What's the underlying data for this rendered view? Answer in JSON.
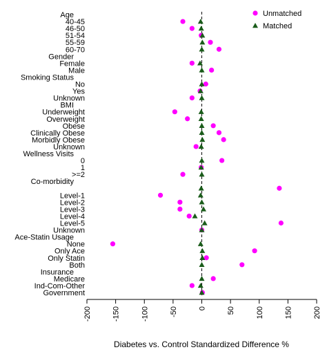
{
  "chart_data": {
    "type": "scatter",
    "xlabel": "Diabetes vs. Control Standardized Difference %",
    "xlim": [
      -200,
      200
    ],
    "xticks": [
      -200,
      -150,
      -100,
      -50,
      0,
      50,
      100,
      150,
      200
    ],
    "reference_line": 0,
    "legend_position": "top-right",
    "colors": {
      "unmatched": "#ff00ff",
      "matched": "#1a5c1a"
    },
    "legend": [
      {
        "key": "unmatched",
        "label": "Unmatched",
        "marker": "circle"
      },
      {
        "key": "matched",
        "label": "Matched",
        "marker": "triangle"
      }
    ],
    "rows": [
      {
        "label": "Age",
        "header": true
      },
      {
        "label": "40-45",
        "unmatched": -33,
        "matched": -2
      },
      {
        "label": "46-50",
        "unmatched": -17,
        "matched": -1
      },
      {
        "label": "51-54",
        "unmatched": -1,
        "matched": 1
      },
      {
        "label": "55-59",
        "unmatched": 15,
        "matched": 1
      },
      {
        "label": "60-70",
        "unmatched": 30,
        "matched": 0
      },
      {
        "label": "Gender",
        "header": true
      },
      {
        "label": "Female",
        "unmatched": -17,
        "matched": -3
      },
      {
        "label": "Male",
        "unmatched": 17,
        "matched": 0
      },
      {
        "label": "Smoking Status",
        "header": true
      },
      {
        "label": "No",
        "unmatched": 7,
        "matched": 0
      },
      {
        "label": "Yes",
        "unmatched": -3,
        "matched": -2
      },
      {
        "label": "Unknown",
        "unmatched": -17,
        "matched": 0
      },
      {
        "label": "BMI",
        "header": true
      },
      {
        "label": "Underweight",
        "unmatched": -47,
        "matched": -1
      },
      {
        "label": "Overweight",
        "unmatched": -25,
        "matched": -1
      },
      {
        "label": "Obese",
        "unmatched": 20,
        "matched": 0
      },
      {
        "label": "Clinically Obese",
        "unmatched": 30,
        "matched": 0
      },
      {
        "label": "Morbidly Obese",
        "unmatched": 38,
        "matched": 1
      },
      {
        "label": "Unknown",
        "unmatched": -10,
        "matched": -1
      },
      {
        "label": "Wellness Visits",
        "header": true
      },
      {
        "label": "0",
        "unmatched": 35,
        "matched": 0
      },
      {
        "label": "1",
        "unmatched": -1,
        "matched": -1
      },
      {
        "label": ">=2",
        "unmatched": -33,
        "matched": 0
      },
      {
        "label": "Co-morbidity",
        "header": true
      },
      {
        "label": "",
        "unmatched": 135,
        "matched": -1
      },
      {
        "label": "Level-1",
        "unmatched": -72,
        "matched": -2
      },
      {
        "label": "Level-2",
        "unmatched": -38,
        "matched": 0
      },
      {
        "label": "Level-3",
        "unmatched": -38,
        "matched": 3
      },
      {
        "label": "Level-4",
        "unmatched": -22,
        "matched": -12
      },
      {
        "label": "Level-5",
        "unmatched": 138,
        "matched": 5
      },
      {
        "label": "Unknown",
        "unmatched": 0,
        "matched": 0
      },
      {
        "label": "Ace-Statin Usage",
        "header": true
      },
      {
        "label": "None",
        "unmatched": -155,
        "matched": -2
      },
      {
        "label": "Only Ace",
        "unmatched": 92,
        "matched": 1
      },
      {
        "label": "Only Statin",
        "unmatched": 8,
        "matched": 1
      },
      {
        "label": "Both",
        "unmatched": 70,
        "matched": 0
      },
      {
        "label": "Insurance",
        "header": true
      },
      {
        "label": "Medicare",
        "unmatched": 20,
        "matched": 0
      },
      {
        "label": "Ind-Com-Other",
        "unmatched": -17,
        "matched": -2
      },
      {
        "label": "Government",
        "unmatched": 1,
        "matched": 0
      }
    ]
  }
}
